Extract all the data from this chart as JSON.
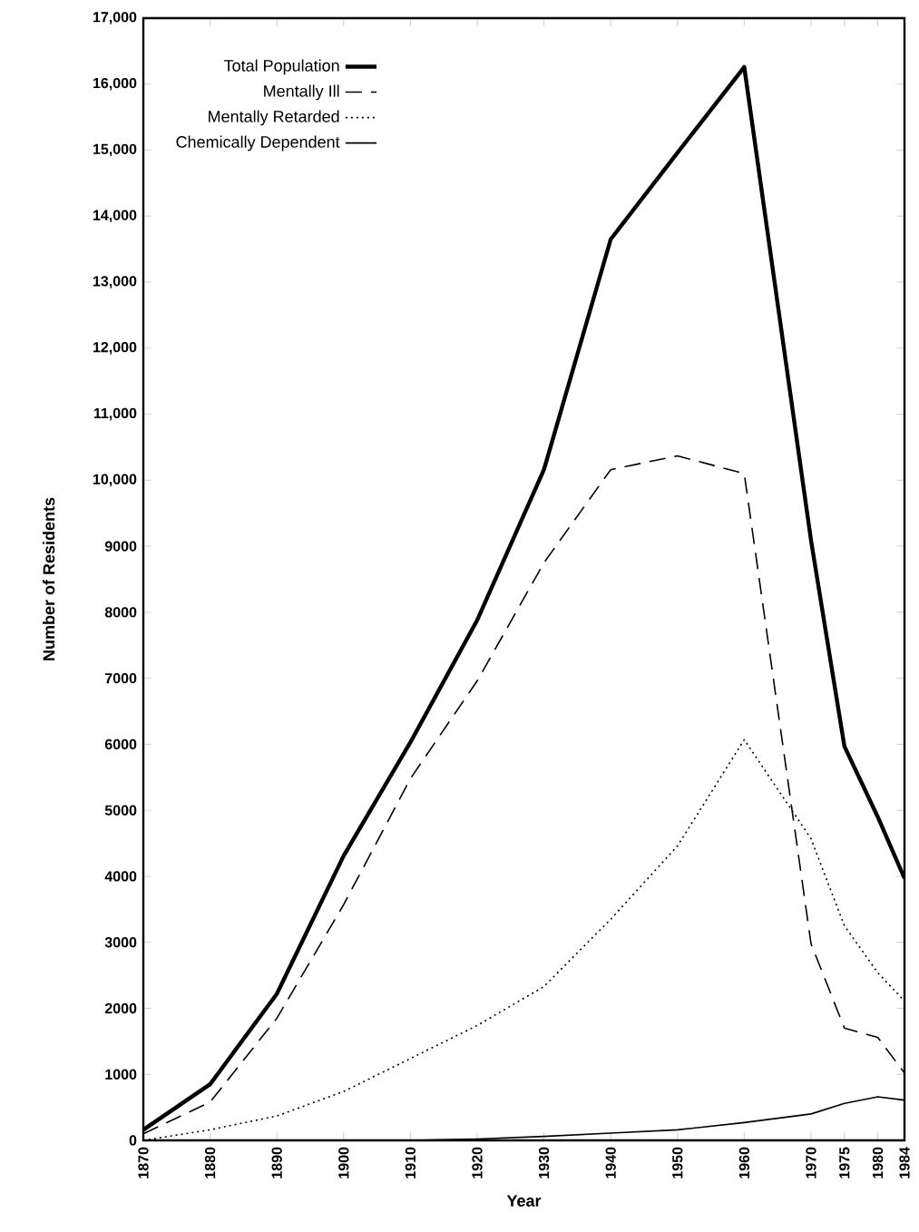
{
  "chart_data": {
    "type": "line",
    "xlabel": "Year",
    "ylabel": "Number of Residents",
    "x": [
      1870,
      1880,
      1890,
      1900,
      1910,
      1920,
      1930,
      1940,
      1950,
      1960,
      1970,
      1975,
      1980,
      1984
    ],
    "series": [
      {
        "name": "Total Population",
        "color": "#000000",
        "line_style": "solid",
        "values": [
          160,
          850,
          2220,
          4310,
          6030,
          7880,
          10160,
          13650,
          14960,
          16260,
          9090,
          5970,
          4900,
          3970
        ]
      },
      {
        "name": "Mentally Ill",
        "color": "#000000",
        "line_style": "dashed",
        "values": [
          100,
          580,
          1850,
          3570,
          5480,
          6960,
          8750,
          10160,
          10370,
          10100,
          2980,
          1700,
          1560,
          1020
        ]
      },
      {
        "name": "Mentally Retarded",
        "color": "#000000",
        "line_style": "dotted",
        "values": [
          0,
          160,
          370,
          740,
          1240,
          1740,
          2330,
          3350,
          4460,
          6070,
          4570,
          3250,
          2540,
          2110
        ]
      },
      {
        "name": "Chemically Dependent",
        "color": "#000000",
        "line_style": "solid",
        "values": [
          0,
          0,
          0,
          0,
          0,
          20,
          60,
          110,
          160,
          270,
          400,
          560,
          660,
          610
        ]
      }
    ],
    "xlim": [
      1870,
      1984
    ],
    "ylim": [
      0,
      17000
    ],
    "xticks": [
      1870,
      1880,
      1890,
      1900,
      1910,
      1920,
      1930,
      1940,
      1950,
      1960,
      1970,
      1975,
      1980,
      1984
    ],
    "yticks": [
      0,
      1000,
      2000,
      3000,
      4000,
      5000,
      6000,
      7000,
      8000,
      9000,
      {
        "value": 10000,
        "label": "10,000"
      },
      {
        "value": 11000,
        "label": "11,000"
      },
      {
        "value": 12000,
        "label": "12,000"
      },
      {
        "value": 13000,
        "label": "13,000"
      },
      {
        "value": 14000,
        "label": "14,000"
      },
      {
        "value": 15000,
        "label": "15,000"
      },
      {
        "value": 16000,
        "label": "16,000"
      },
      {
        "value": 17000,
        "label": "17,000"
      }
    ],
    "legend": "top left",
    "grid": false,
    "marker": "none"
  }
}
